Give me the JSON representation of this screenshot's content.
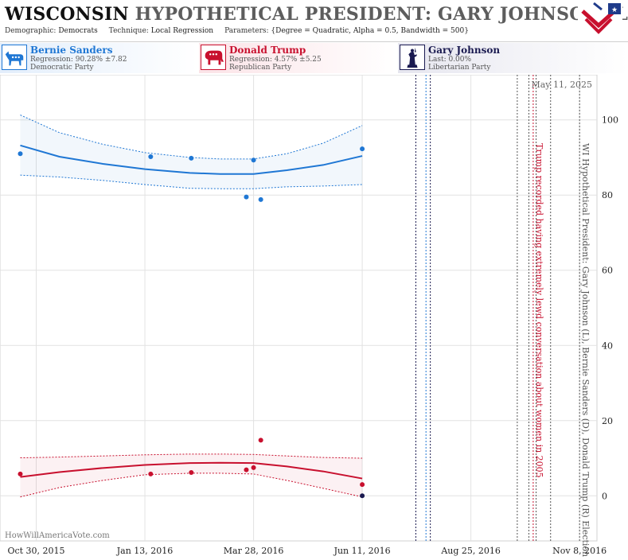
{
  "header": {
    "state": "WISCONSIN",
    "title_rest": "HYPOTHETICAL PRESIDENT: GARY JOHNSON (L) B",
    "demographic_label": "Demographic:",
    "demographic_value": "Democrats",
    "technique_label": "Technique:",
    "technique_value": "Local Regression",
    "parameters_label": "Parameters:",
    "parameters_value": "{Degree = Quadratic, Alpha = 0.5, Bandwidth = 500}"
  },
  "legend": [
    {
      "name": "Bernie Sanders",
      "stat": "Regression: 90.28% ±7.82",
      "party": "Democratic Party",
      "color": "#1f77d4",
      "icon": "donkey-icon"
    },
    {
      "name": "Donald Trump",
      "stat": "Regression: 4.57% ±5.25",
      "party": "Republican Party",
      "color": "#c8102e",
      "icon": "elephant-icon"
    },
    {
      "name": "Gary Johnson",
      "stat": "Last: 0.00%",
      "party": "Libertarian Party",
      "color": "#1a1a50",
      "icon": "liberty-statue-icon"
    }
  ],
  "watermark": "HowWillAmericaVote.com",
  "date_stamp": "May 11, 2025",
  "chart_data": {
    "type": "scatter",
    "x_range": [
      "2015-10-05",
      "2016-11-20"
    ],
    "ylim": [
      -12,
      112
    ],
    "y_ticks": [
      0,
      20,
      40,
      60,
      80,
      100
    ],
    "x_tick_labels": [
      "Oct 30, 2015",
      "Jan 13, 2016",
      "Mar 28, 2016",
      "Jun 11, 2016",
      "Aug 25, 2016",
      "Nov 8, 2016"
    ],
    "x_ticks": [
      "2015-10-30",
      "2016-01-13",
      "2016-03-28",
      "2016-06-11",
      "2016-08-25",
      "2016-11-08"
    ],
    "grid": true,
    "series": [
      {
        "name": "Bernie Sanders",
        "color": "#1f77d4",
        "points": [
          {
            "x": "2015-10-19",
            "y": 91
          },
          {
            "x": "2016-01-17",
            "y": 90.2
          },
          {
            "x": "2016-02-14",
            "y": 89.8
          },
          {
            "x": "2016-03-23",
            "y": 79.5
          },
          {
            "x": "2016-03-28",
            "y": 89.3
          },
          {
            "x": "2016-04-02",
            "y": 78.8
          },
          {
            "x": "2016-06-11",
            "y": 92.3
          }
        ],
        "regression": {
          "x": [
            "2015-10-19",
            "2015-11-15",
            "2015-12-15",
            "2016-01-13",
            "2016-02-13",
            "2016-03-05",
            "2016-03-28",
            "2016-04-20",
            "2016-05-15",
            "2016-06-11"
          ],
          "y": [
            93.2,
            90.2,
            88.3,
            86.9,
            85.9,
            85.6,
            85.6,
            86.6,
            88.0,
            90.4
          ],
          "upper": [
            101.3,
            96.6,
            93.5,
            91.3,
            90.0,
            89.6,
            89.6,
            91.0,
            93.8,
            98.5
          ],
          "lower": [
            85.3,
            84.8,
            83.9,
            82.8,
            81.8,
            81.7,
            81.7,
            82.2,
            82.4,
            82.8
          ]
        }
      },
      {
        "name": "Donald Trump",
        "color": "#c8102e",
        "points": [
          {
            "x": "2015-10-19",
            "y": 5.8
          },
          {
            "x": "2016-01-17",
            "y": 5.8
          },
          {
            "x": "2016-02-14",
            "y": 6.2
          },
          {
            "x": "2016-03-23",
            "y": 6.9
          },
          {
            "x": "2016-03-28",
            "y": 7.5
          },
          {
            "x": "2016-04-02",
            "y": 14.8
          },
          {
            "x": "2016-06-11",
            "y": 3.0
          }
        ],
        "regression": {
          "x": [
            "2015-10-19",
            "2015-11-15",
            "2015-12-15",
            "2016-01-13",
            "2016-02-13",
            "2016-03-05",
            "2016-03-28",
            "2016-04-20",
            "2016-05-15",
            "2016-06-11"
          ],
          "y": [
            5.0,
            6.3,
            7.4,
            8.2,
            8.7,
            8.8,
            8.7,
            7.8,
            6.5,
            4.6
          ],
          "upper": [
            10.1,
            10.3,
            10.6,
            10.9,
            11.1,
            11.1,
            11.0,
            10.6,
            10.2,
            10.0
          ],
          "lower": [
            -0.3,
            2.2,
            4.1,
            5.6,
            6.0,
            6.0,
            5.8,
            4.1,
            2.0,
            -0.3
          ]
        }
      },
      {
        "name": "Gary Johnson",
        "color": "#1a1a50",
        "points": [
          {
            "x": "2016-06-11",
            "y": 0
          }
        ]
      }
    ],
    "events": [
      {
        "x": "2016-07-18",
        "color": "#1a1a50",
        "style": "dotted"
      },
      {
        "x": "2016-07-25",
        "color": "#1f77d4",
        "style": "dotted"
      },
      {
        "x": "2016-07-28",
        "color": "#1a1a50",
        "style": "dotted"
      },
      {
        "x": "2016-09-26",
        "color": "#555555",
        "style": "dotted"
      },
      {
        "x": "2016-10-04",
        "color": "#555555",
        "style": "dotted"
      },
      {
        "x": "2016-10-07",
        "color": "#c8102e",
        "style": "dotted",
        "label": "Trump recorded having extremely lewd conversation about women in 2005"
      },
      {
        "x": "2016-10-09",
        "color": "#555555",
        "style": "dotted"
      },
      {
        "x": "2016-10-19",
        "color": "#555555",
        "style": "dotted"
      },
      {
        "x": "2016-11-08",
        "color": "#555555",
        "style": "dotted",
        "label": "WI Hypothetical President: Gary Johnson (L), Bernie Sanders (D), Donald Trump (R) Election"
      }
    ]
  }
}
